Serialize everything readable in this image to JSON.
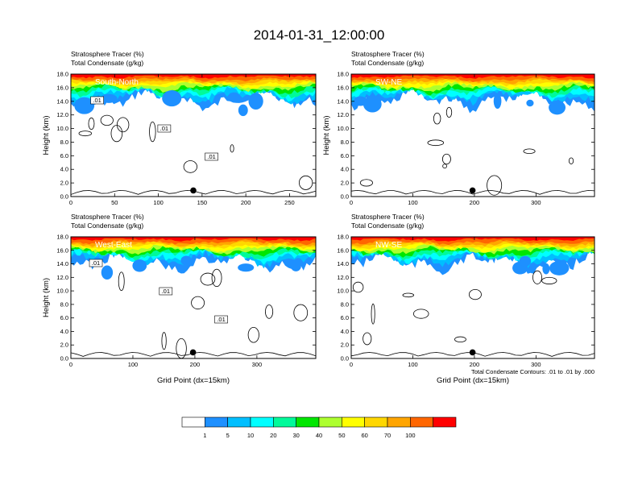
{
  "figure": {
    "title": "2014-01-31_12:00:00",
    "footnote": "Total Condensate Contours: .01 to .01 by .000"
  },
  "colorbar": {
    "labels": [
      "1",
      "5",
      "10",
      "20",
      "30",
      "40",
      "50",
      "60",
      "70",
      "100"
    ],
    "colors": [
      "#ffffff",
      "#1e90ff",
      "#00bfff",
      "#00ffff",
      "#00fa9a",
      "#00e600",
      "#adff2f",
      "#ffff00",
      "#ffd700",
      "#ffa500",
      "#ff6600",
      "#ff0000"
    ]
  },
  "chart_data": [
    {
      "type": "contour",
      "panel_label": "South-North",
      "line1": "Stratosphere Tracer   (%)",
      "line2": "Total Condensate   (g/kg)",
      "ylabel": "Height (km)",
      "xlabel": "",
      "xlim": [
        0,
        280
      ],
      "ylim": [
        0,
        18
      ],
      "xticks": [
        "0",
        "50",
        "100",
        "150",
        "200",
        "250"
      ],
      "xtick_values": [
        0,
        50,
        100,
        150,
        200,
        250
      ],
      "yticks": [
        "0.0",
        "2.0",
        "4.0",
        "6.0",
        "8.0",
        "10.0",
        "12.0",
        "14.0",
        "16.0",
        "18.0"
      ],
      "contour_labels": [
        ".01",
        ".01",
        ".01"
      ],
      "marker_x": 140
    },
    {
      "type": "contour",
      "panel_label": "SW-NE",
      "line1": "Stratosphere Tracer   (%)",
      "line2": "Total Condensate   (g/kg)",
      "ylabel": "Height (km)",
      "xlabel": "",
      "xlim": [
        0,
        395
      ],
      "ylim": [
        0,
        18
      ],
      "xticks": [
        "0",
        "100",
        "200",
        "300"
      ],
      "xtick_values": [
        0,
        100,
        200,
        300
      ],
      "yticks": [
        "0.0",
        "2.0",
        "4.0",
        "6.0",
        "8.0",
        "10.0",
        "12.0",
        "14.0",
        "16.0",
        "18.0"
      ],
      "contour_labels": [],
      "marker_x": 197
    },
    {
      "type": "contour",
      "panel_label": "West-East",
      "line1": "Stratosphere Tracer   (%)",
      "line2": "Total Condensate   (g/kg)",
      "ylabel": "Height (km)",
      "xlabel": "Grid Point (dx=15km)",
      "xlim": [
        0,
        395
      ],
      "ylim": [
        0,
        18
      ],
      "xticks": [
        "0",
        "100",
        "200",
        "300"
      ],
      "xtick_values": [
        0,
        100,
        200,
        300
      ],
      "yticks": [
        "0.0",
        "2.0",
        "4.0",
        "6.0",
        "8.0",
        "10.0",
        "12.0",
        "14.0",
        "16.0",
        "18.0"
      ],
      "contour_labels": [
        ".01",
        ".01",
        ".01"
      ],
      "marker_x": 197
    },
    {
      "type": "contour",
      "panel_label": "NW-SE",
      "line1": "Stratosphere Tracer   (%)",
      "line2": "Total Condensate   (g/kg)",
      "ylabel": "",
      "xlabel": "Grid Point (dx=15km)",
      "xlim": [
        0,
        395
      ],
      "ylim": [
        0,
        18
      ],
      "xticks": [
        "0",
        "100",
        "200",
        "300"
      ],
      "xtick_values": [
        0,
        100,
        200,
        300
      ],
      "yticks": [
        "0.0",
        "2.0",
        "4.0",
        "6.0",
        "8.0",
        "10.0",
        "12.0",
        "14.0",
        "16.0",
        "18.0"
      ],
      "contour_labels": [],
      "marker_x": 197
    }
  ]
}
